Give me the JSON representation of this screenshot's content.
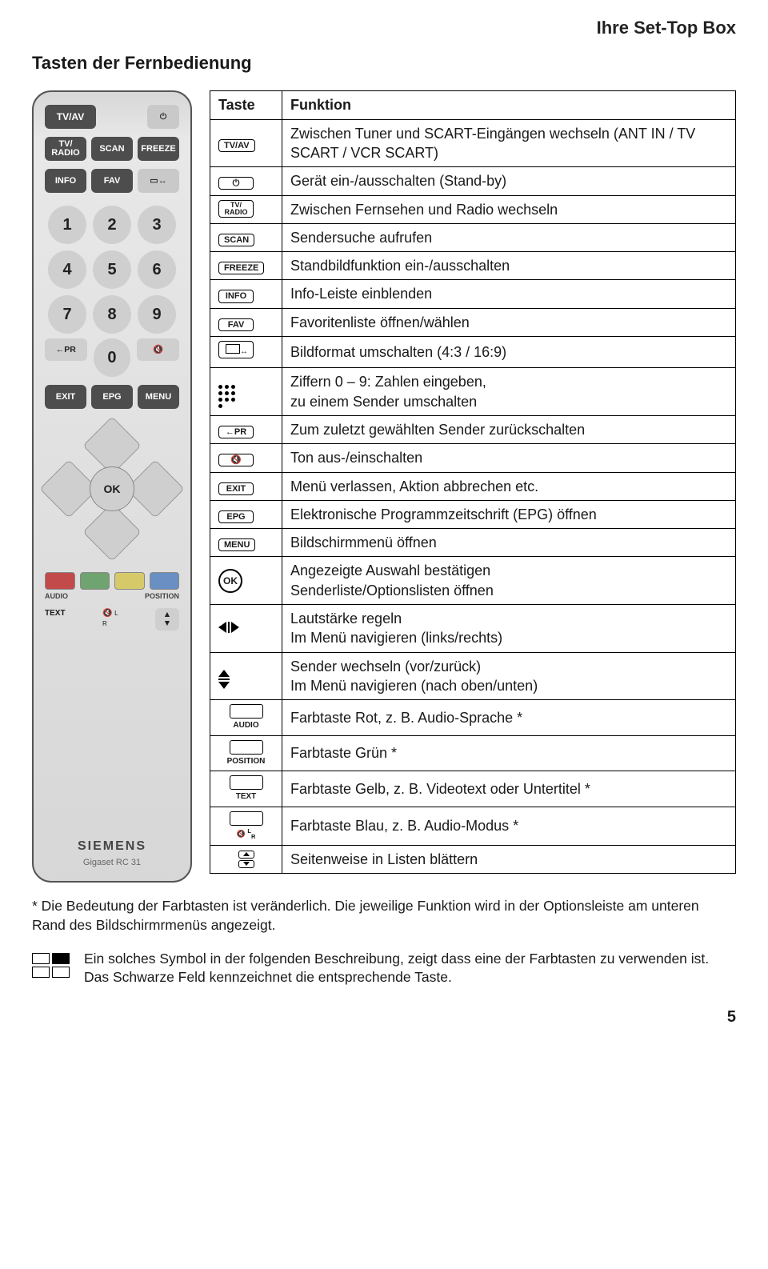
{
  "header": {
    "right": "Ihre Set-Top Box"
  },
  "subtitle": "Tasten der Fernbedienung",
  "remote": {
    "tvav": "TV/AV",
    "tvradio": "TV/\nRADIO",
    "scan": "SCAN",
    "freeze": "FREEZE",
    "info": "INFO",
    "fav": "FAV",
    "pr": "←PR",
    "exit": "EXIT",
    "epg": "EPG",
    "menu": "MENU",
    "ok": "OK",
    "audio": "AUDIO",
    "position": "POSITION",
    "text": "TEXT",
    "lr": "L\nR",
    "brand": "SIEMENS",
    "model": "Gigaset RC 31",
    "nums": [
      "1",
      "2",
      "3",
      "4",
      "5",
      "6",
      "7",
      "8",
      "9",
      "0"
    ]
  },
  "table": {
    "head_key": "Taste",
    "head_func": "Funktion",
    "rows": [
      {
        "keyType": "label",
        "keyText": "TV/AV",
        "func": "Zwischen Tuner und SCART-Eingängen wechseln (ANT IN / TV SCART / VCR SCART)"
      },
      {
        "keyType": "power",
        "func": "Gerät ein-/ausschalten (Stand-by)"
      },
      {
        "keyType": "label2",
        "keyText": "TV/\nRADIO",
        "func": "Zwischen Fernsehen und Radio wechseln"
      },
      {
        "keyType": "label",
        "keyText": "SCAN",
        "func": "Sendersuche aufrufen"
      },
      {
        "keyType": "label",
        "keyText": "FREEZE",
        "func": "Standbildfunktion ein-/ausschalten"
      },
      {
        "keyType": "label",
        "keyText": "INFO",
        "func": "Info-Leiste einblenden"
      },
      {
        "keyType": "label",
        "keyText": "FAV",
        "func": "Favoritenliste öffnen/wählen"
      },
      {
        "keyType": "aspect",
        "func": "Bildformat umschalten (4:3 / 16:9)"
      },
      {
        "keyType": "keypad",
        "func": "Ziffern 0 – 9: Zahlen eingeben,\nzu einem Sender umschalten"
      },
      {
        "keyType": "label",
        "keyText": "←PR",
        "func": "Zum zuletzt gewählten Sender zurückschalten"
      },
      {
        "keyType": "mute",
        "func": "Ton aus-/einschalten"
      },
      {
        "keyType": "label",
        "keyText": "EXIT",
        "func": "Menü verlassen, Aktion abbrechen etc."
      },
      {
        "keyType": "label",
        "keyText": "EPG",
        "func": "Elektronische Programmzeitschrift (EPG) öffnen"
      },
      {
        "keyType": "label",
        "keyText": "MENU",
        "func": "Bildschirmmenü öffnen"
      },
      {
        "keyType": "ok",
        "func": "Angezeigte Auswahl bestätigen\nSenderliste/Optionslisten öffnen"
      },
      {
        "keyType": "lr",
        "func": "Lautstärke regeln\nIm Menü navigieren (links/rechts)"
      },
      {
        "keyType": "ud",
        "func": "Sender wechseln (vor/zurück)\nIm Menü navigieren (nach oben/unten)"
      },
      {
        "keyType": "colbox",
        "belowLabel": "AUDIO",
        "func": "Farbtaste Rot, z. B. Audio-Sprache *"
      },
      {
        "keyType": "colbox",
        "belowLabel": "POSITION",
        "func": "Farbtaste Grün *"
      },
      {
        "keyType": "colbox",
        "belowLabel": "TEXT",
        "func": "Farbtaste Gelb, z. B. Videotext oder Untertitel *"
      },
      {
        "keyType": "colbox",
        "belowLabel": "🔇 L R",
        "smallIcon": true,
        "func": "Farbtaste Blau, z. B. Audio-Modus *"
      },
      {
        "keyType": "page",
        "func": "Seitenweise in Listen blättern"
      }
    ]
  },
  "footnote": "* Die Bedeutung der Farbtasten ist veränderlich. Die jeweilige Funktion wird in der Optionsleiste am unteren Rand des Bildschirmrmenüs angezeigt.",
  "legend": "Ein solches Symbol in der folgenden Beschreibung, zeigt dass eine der Farbtasten zu verwenden ist. Das Schwarze Feld kennzeichnet die entsprechende Taste.",
  "pageNumber": "5",
  "colors": {
    "red": "#c34a4a",
    "green": "#6fa36f",
    "yellow": "#d6c96a",
    "blue": "#6a8fc3"
  }
}
